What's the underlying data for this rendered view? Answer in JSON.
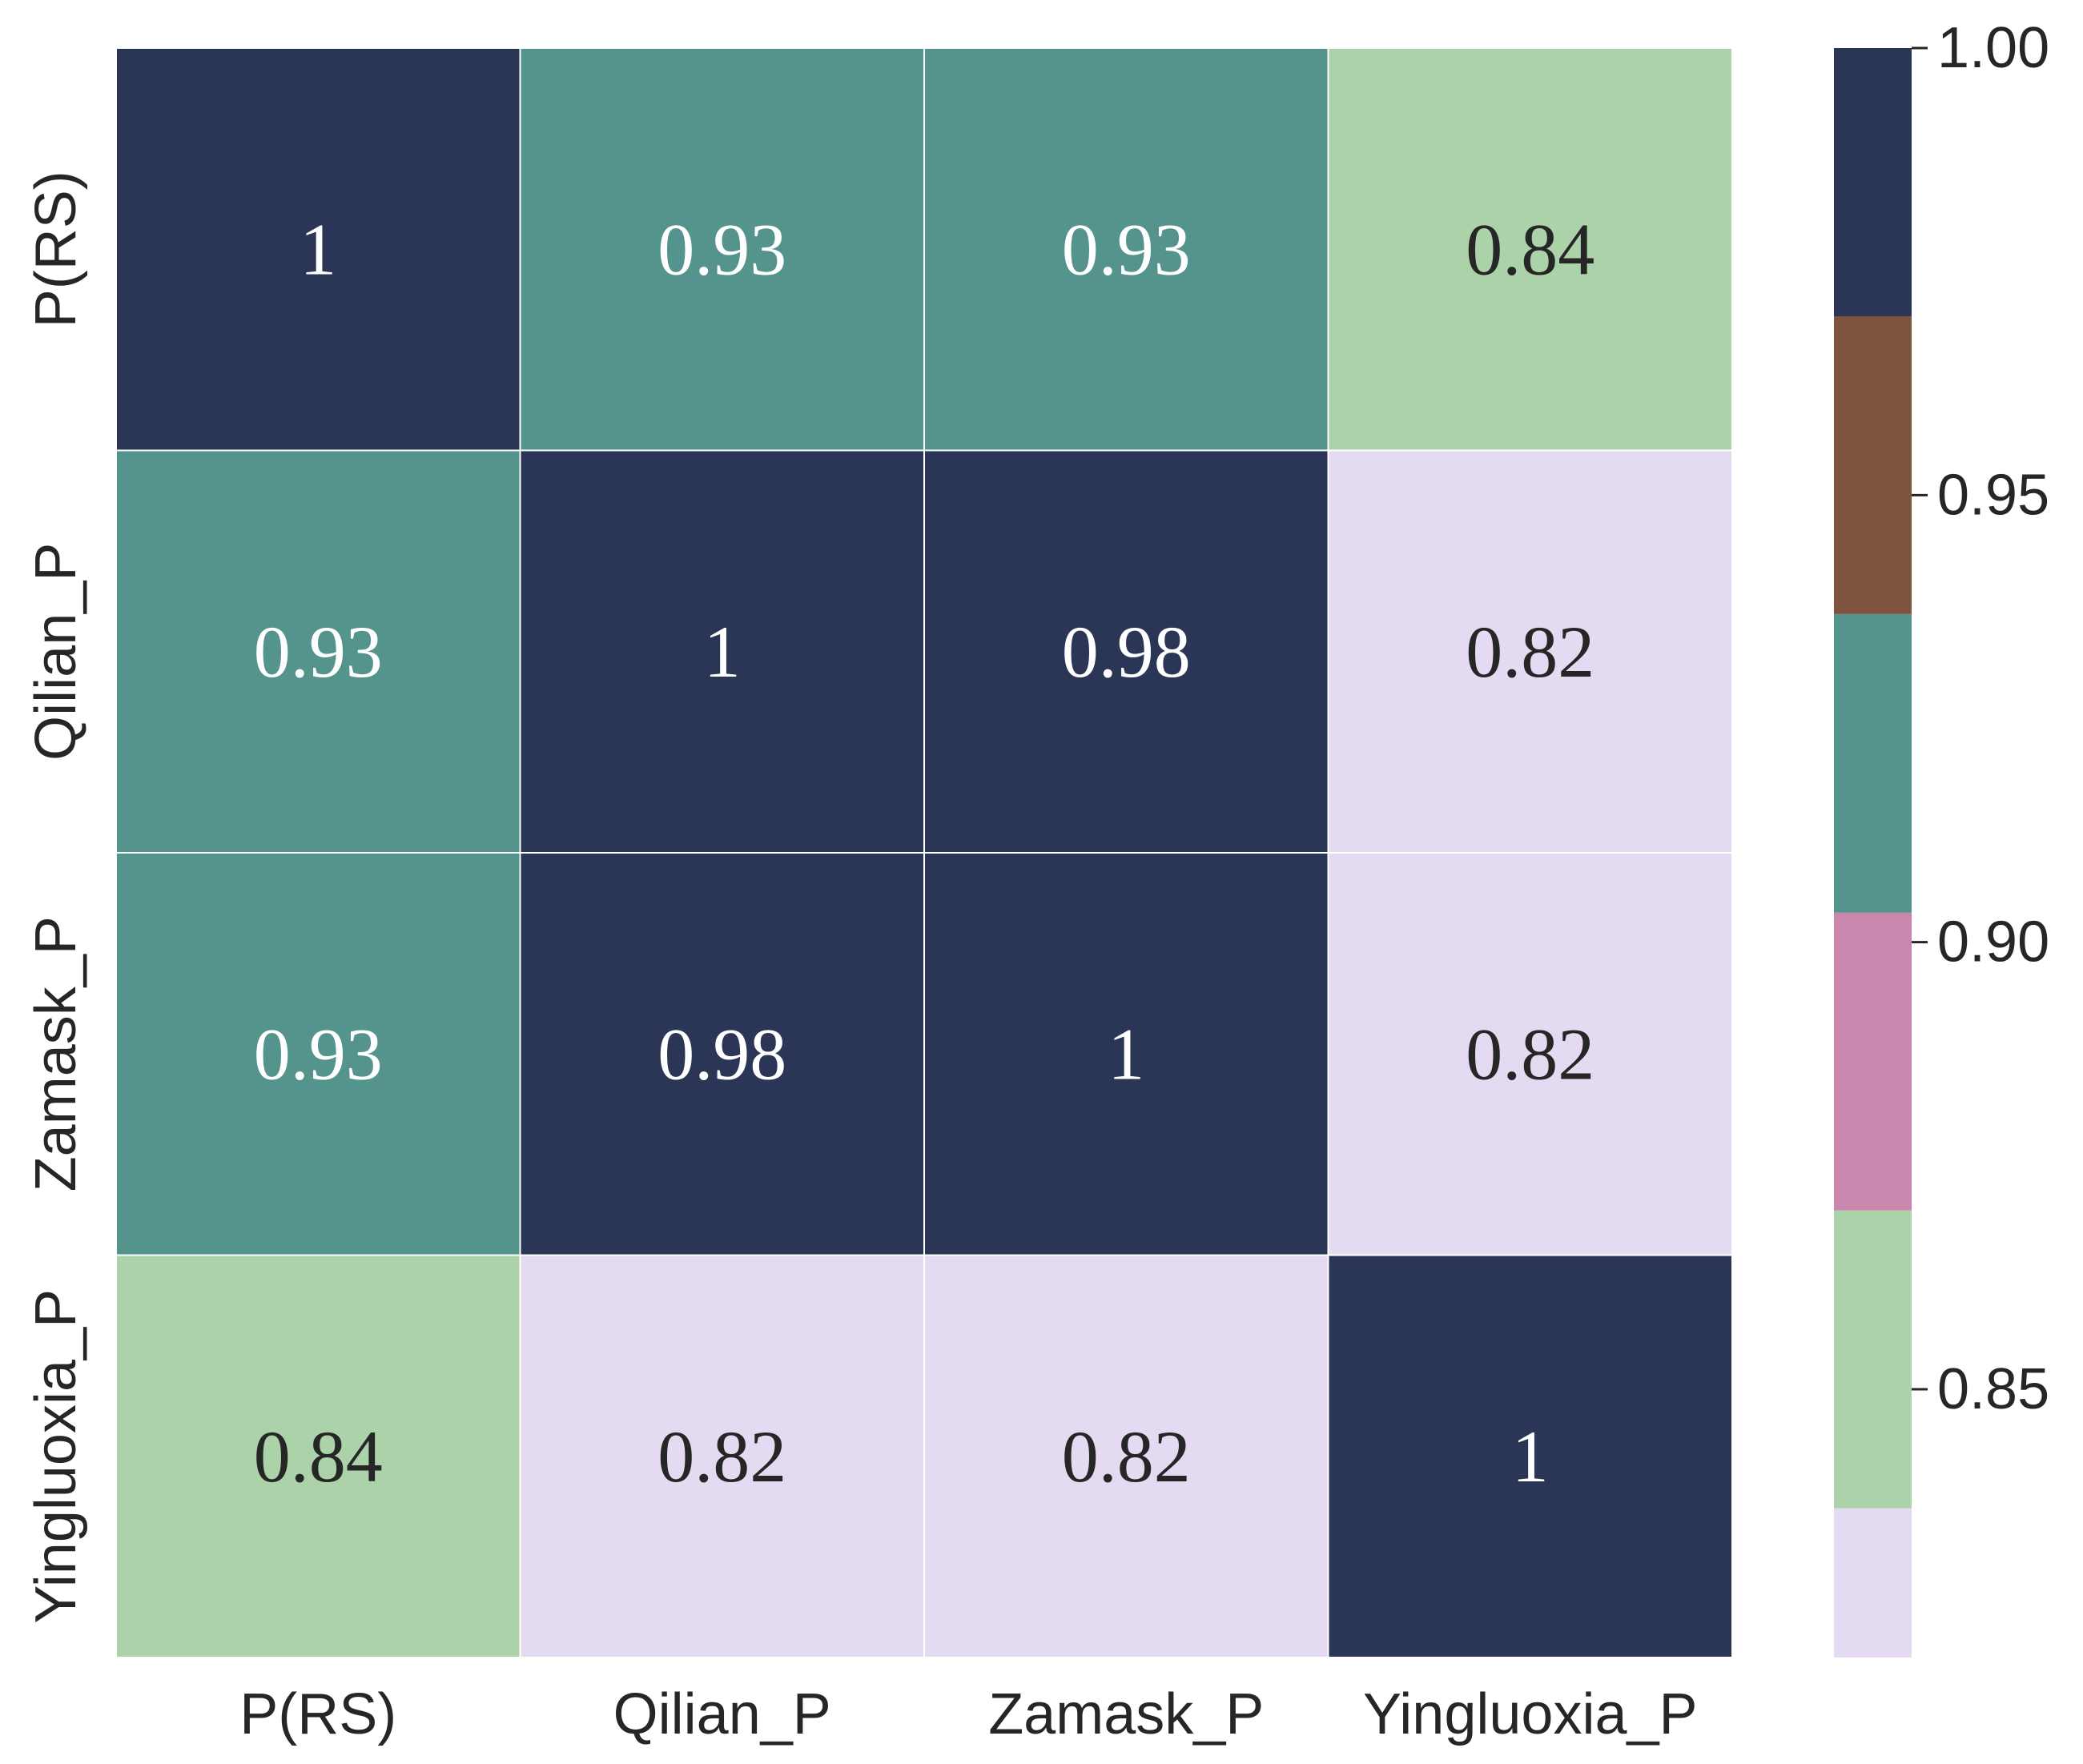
{
  "chart_data": {
    "type": "heatmap",
    "title": "",
    "xlabel": "",
    "ylabel": "",
    "x_categories": [
      "P(RS)",
      "Qilian_P",
      "Zamask_P",
      "Yingluoxia_P"
    ],
    "y_categories": [
      "P(RS)",
      "Qilian_P",
      "Zamask_P",
      "Yingluoxia_P"
    ],
    "values": [
      [
        1,
        0.93,
        0.93,
        0.84
      ],
      [
        0.93,
        1,
        0.98,
        0.82
      ],
      [
        0.93,
        0.98,
        1,
        0.82
      ],
      [
        0.84,
        0.82,
        0.82,
        1
      ]
    ],
    "value_labels": [
      [
        "1",
        "0.93",
        "0.93",
        "0.84"
      ],
      [
        "0.93",
        "1",
        "0.98",
        "0.82"
      ],
      [
        "0.93",
        "0.98",
        "1",
        "0.82"
      ],
      [
        "0.84",
        "0.82",
        "0.82",
        "1"
      ]
    ],
    "colorbar": {
      "range": [
        0.82,
        1.0
      ],
      "ticks": [
        0.85,
        0.9,
        0.95,
        1.0
      ],
      "tick_labels": [
        "0.85",
        "0.90",
        "0.95",
        "1.00"
      ],
      "bins": [
        {
          "from": 0.82,
          "to": 0.8367,
          "color": "#e4dbf3"
        },
        {
          "from": 0.8367,
          "to": 0.87,
          "color": "#abd2a8"
        },
        {
          "from": 0.87,
          "to": 0.9033,
          "color": "#ca87ae"
        },
        {
          "from": 0.9033,
          "to": 0.9367,
          "color": "#55948d"
        },
        {
          "from": 0.9367,
          "to": 0.97,
          "color": "#7f543f"
        },
        {
          "from": 0.97,
          "to": 1.0,
          "color": "#2b3656"
        }
      ]
    }
  }
}
